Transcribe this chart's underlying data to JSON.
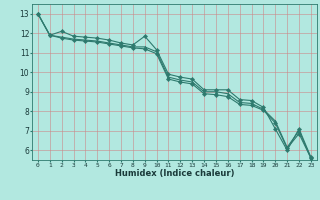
{
  "title": "",
  "xlabel": "Humidex (Indice chaleur)",
  "background_color": "#b2e8e0",
  "grid_color": "#cc8888",
  "line_color": "#2e7a6e",
  "xlim": [
    -0.5,
    23.5
  ],
  "ylim": [
    5.5,
    13.5
  ],
  "xticks": [
    0,
    1,
    2,
    3,
    4,
    5,
    6,
    7,
    8,
    9,
    10,
    11,
    12,
    13,
    14,
    15,
    16,
    17,
    18,
    19,
    20,
    21,
    22,
    23
  ],
  "yticks": [
    6,
    7,
    8,
    9,
    10,
    11,
    12,
    13
  ],
  "series": [
    [
      13.0,
      11.9,
      12.1,
      11.85,
      11.8,
      11.75,
      11.65,
      11.5,
      11.4,
      11.85,
      11.15,
      9.9,
      9.75,
      9.65,
      9.1,
      9.1,
      9.1,
      8.6,
      8.55,
      8.2,
      7.1,
      6.0,
      7.1,
      5.65
    ],
    [
      13.0,
      11.9,
      11.8,
      11.7,
      11.65,
      11.6,
      11.5,
      11.4,
      11.3,
      11.3,
      11.05,
      9.75,
      9.6,
      9.5,
      9.0,
      9.0,
      8.9,
      8.45,
      8.4,
      8.1,
      7.5,
      6.15,
      7.0,
      5.6
    ],
    [
      13.0,
      11.9,
      11.75,
      11.65,
      11.6,
      11.55,
      11.45,
      11.35,
      11.25,
      11.2,
      10.95,
      9.65,
      9.5,
      9.4,
      8.9,
      8.85,
      8.75,
      8.35,
      8.3,
      8.05,
      7.4,
      6.1,
      6.85,
      5.6
    ]
  ]
}
